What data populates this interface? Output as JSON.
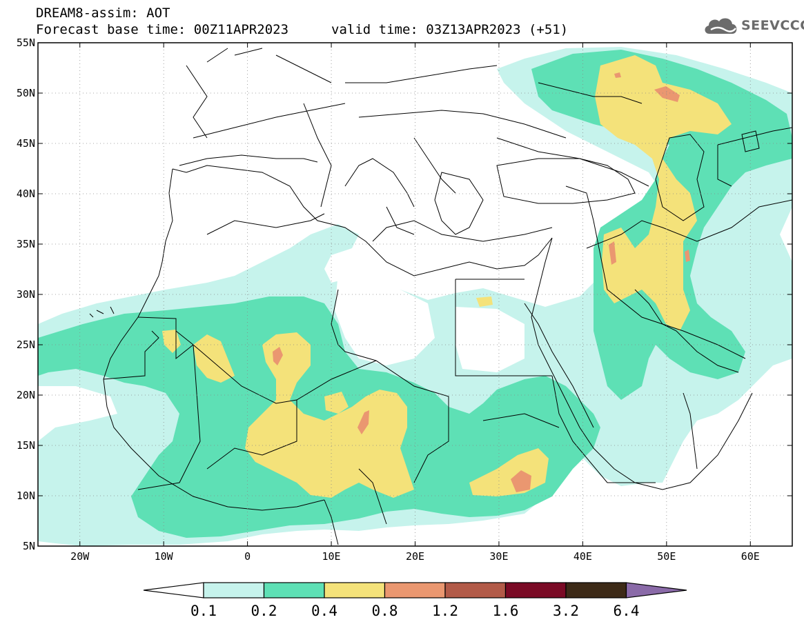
{
  "header": {
    "title": "DREAM8-assim: AOT",
    "base_time": "Forecast base time: 00Z11APR2023",
    "valid_time": "valid time: 03Z13APR2023 (+51)"
  },
  "logo": {
    "text": "SEEVCCC",
    "icon": "cloud-icon",
    "color": "#6b6b6b"
  },
  "map": {
    "lon_range": [
      -25,
      65
    ],
    "lat_range": [
      5,
      55
    ],
    "lat_ticks": [
      {
        "value": 55,
        "label": "55N"
      },
      {
        "value": 50,
        "label": "50N"
      },
      {
        "value": 45,
        "label": "45N"
      },
      {
        "value": 40,
        "label": "40N"
      },
      {
        "value": 35,
        "label": "35N"
      },
      {
        "value": 30,
        "label": "30N"
      },
      {
        "value": 25,
        "label": "25N"
      },
      {
        "value": 20,
        "label": "20N"
      },
      {
        "value": 15,
        "label": "15N"
      },
      {
        "value": 10,
        "label": "10N"
      },
      {
        "value": 5,
        "label": "5N"
      }
    ],
    "lon_ticks": [
      {
        "value": -20,
        "label": "20W"
      },
      {
        "value": -10,
        "label": "10W"
      },
      {
        "value": 0,
        "label": "0"
      },
      {
        "value": 10,
        "label": "10E"
      },
      {
        "value": 20,
        "label": "20E"
      },
      {
        "value": 30,
        "label": "30E"
      },
      {
        "value": 40,
        "label": "40E"
      },
      {
        "value": 50,
        "label": "50E"
      },
      {
        "value": 60,
        "label": "60E"
      }
    ],
    "grid": "dotted"
  },
  "colorbar": {
    "labels": [
      "0.1",
      "0.2",
      "0.4",
      "0.8",
      "1.2",
      "1.6",
      "3.2",
      "6.4"
    ],
    "colors": [
      "#c6f3ec",
      "#5ee0b5",
      "#f4e27a",
      "#ea9770",
      "#b25a48",
      "#7a0a25",
      "#3d2a17",
      "#8a6aa8"
    ],
    "below_color": "#ffffff"
  }
}
